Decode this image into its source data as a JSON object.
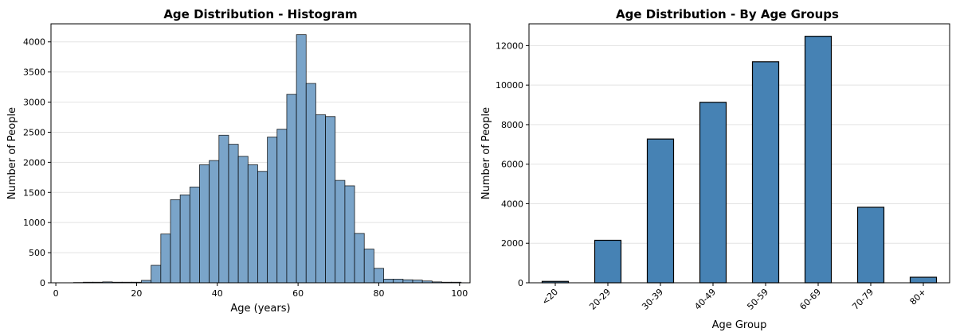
{
  "colors": {
    "hist_bar": "#7aa4c9",
    "group_bar": "#4682b4",
    "edge": "#000000",
    "grid": "#e3e3e3"
  },
  "chart_data": [
    {
      "type": "bar",
      "subtype": "histogram",
      "title": "Age Distribution - Histogram",
      "xlabel": "Age (years)",
      "ylabel": "Number of People",
      "xlim": [
        0,
        100
      ],
      "ylim": [
        0,
        4300
      ],
      "xticks": [
        0,
        20,
        40,
        60,
        80,
        100
      ],
      "yticks": [
        0,
        500,
        1000,
        1500,
        2000,
        2500,
        3000,
        3500,
        4000
      ],
      "grid": "y",
      "bins": [
        {
          "start": 4.4,
          "end": 6.8,
          "count": 5
        },
        {
          "start": 6.8,
          "end": 9.2,
          "count": 10
        },
        {
          "start": 9.2,
          "end": 11.6,
          "count": 10
        },
        {
          "start": 11.6,
          "end": 14.0,
          "count": 15
        },
        {
          "start": 14.0,
          "end": 16.4,
          "count": 10
        },
        {
          "start": 16.4,
          "end": 18.8,
          "count": 10
        },
        {
          "start": 18.8,
          "end": 21.2,
          "count": 10
        },
        {
          "start": 21.2,
          "end": 23.6,
          "count": 40
        },
        {
          "start": 23.6,
          "end": 26.0,
          "count": 290
        },
        {
          "start": 26.0,
          "end": 28.4,
          "count": 810
        },
        {
          "start": 28.4,
          "end": 30.8,
          "count": 1380
        },
        {
          "start": 30.8,
          "end": 33.2,
          "count": 1460
        },
        {
          "start": 33.2,
          "end": 35.6,
          "count": 1590
        },
        {
          "start": 35.6,
          "end": 38.0,
          "count": 1960
        },
        {
          "start": 38.0,
          "end": 40.4,
          "count": 2030
        },
        {
          "start": 40.4,
          "end": 42.8,
          "count": 2450
        },
        {
          "start": 42.8,
          "end": 45.2,
          "count": 2300
        },
        {
          "start": 45.2,
          "end": 47.6,
          "count": 2100
        },
        {
          "start": 47.6,
          "end": 50.0,
          "count": 1960
        },
        {
          "start": 50.0,
          "end": 52.4,
          "count": 1850
        },
        {
          "start": 52.4,
          "end": 54.8,
          "count": 2420
        },
        {
          "start": 54.8,
          "end": 57.2,
          "count": 2550
        },
        {
          "start": 57.2,
          "end": 59.6,
          "count": 3130
        },
        {
          "start": 59.6,
          "end": 62.0,
          "count": 4120
        },
        {
          "start": 62.0,
          "end": 64.4,
          "count": 3310
        },
        {
          "start": 64.4,
          "end": 66.8,
          "count": 2790
        },
        {
          "start": 66.8,
          "end": 69.2,
          "count": 2760
        },
        {
          "start": 69.2,
          "end": 71.6,
          "count": 1700
        },
        {
          "start": 71.6,
          "end": 74.0,
          "count": 1610
        },
        {
          "start": 74.0,
          "end": 76.4,
          "count": 820
        },
        {
          "start": 76.4,
          "end": 78.8,
          "count": 560
        },
        {
          "start": 78.8,
          "end": 81.2,
          "count": 240
        },
        {
          "start": 81.2,
          "end": 83.6,
          "count": 60
        },
        {
          "start": 83.6,
          "end": 86.0,
          "count": 60
        },
        {
          "start": 86.0,
          "end": 88.4,
          "count": 50
        },
        {
          "start": 88.4,
          "end": 90.8,
          "count": 45
        },
        {
          "start": 90.8,
          "end": 93.2,
          "count": 30
        },
        {
          "start": 93.2,
          "end": 95.6,
          "count": 15
        },
        {
          "start": 95.6,
          "end": 98.0,
          "count": 10
        },
        {
          "start": 98.0,
          "end": 100.4,
          "count": 10
        }
      ]
    },
    {
      "type": "bar",
      "title": "Age Distribution - By Age Groups",
      "xlabel": "Age Group",
      "ylabel": "Number of People",
      "ylim": [
        0,
        13100
      ],
      "yticks": [
        0,
        2000,
        4000,
        6000,
        8000,
        10000,
        12000
      ],
      "grid": "y",
      "categories": [
        "<20",
        "20-29",
        "30-39",
        "40-49",
        "50-59",
        "60-69",
        "70-79",
        "80+"
      ],
      "values": [
        70,
        2150,
        7270,
        9130,
        11180,
        12470,
        3820,
        280
      ]
    }
  ]
}
